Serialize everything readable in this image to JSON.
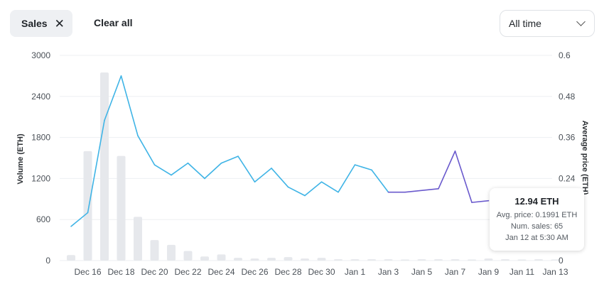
{
  "toolbar": {
    "filter_chip_label": "Sales",
    "clear_label": "Clear all",
    "range_select_value": "All time"
  },
  "tooltip": {
    "value": "12.94 ETH",
    "avg_price": "Avg. price: 0.1991 ETH",
    "num_sales": "Num. sales: 65",
    "date": "Jan 12 at 5:30 AM"
  },
  "colors": {
    "price_line_light": "#3fb4e6",
    "price_line_dark": "#6a5acd",
    "volume_bar": "#e6e8ec",
    "grid": "#edeff2"
  },
  "chart_data": {
    "type": "bar+line",
    "xlabel": "",
    "y_left_label": "Volume (ETH)",
    "y_right_label": "Average price (ETH)",
    "y_left_ticks": [
      "3000",
      "2400",
      "1800",
      "1200",
      "600",
      "0"
    ],
    "y_right_ticks": [
      "0.6",
      "0.48",
      "0.36",
      "0.24",
      "0.12",
      "0"
    ],
    "y_left_lim": [
      0,
      3000
    ],
    "y_right_lim": [
      0,
      0.6
    ],
    "x_tick_labels": [
      "Dec 16",
      "Dec 18",
      "Dec 20",
      "Dec 22",
      "Dec 24",
      "Dec 26",
      "Dec 28",
      "Dec 30",
      "Jan 1",
      "Jan 3",
      "Jan 5",
      "Jan 7",
      "Jan 9",
      "Jan 11",
      "Jan 13"
    ],
    "grid": true,
    "volume_bars": [
      {
        "date": "Dec 15",
        "value": 80
      },
      {
        "date": "Dec 16",
        "value": 1600
      },
      {
        "date": "Dec 17",
        "value": 2750
      },
      {
        "date": "Dec 18",
        "value": 1530
      },
      {
        "date": "Dec 19",
        "value": 640
      },
      {
        "date": "Dec 20",
        "value": 300
      },
      {
        "date": "Dec 21",
        "value": 230
      },
      {
        "date": "Dec 22",
        "value": 140
      },
      {
        "date": "Dec 23",
        "value": 60
      },
      {
        "date": "Dec 24",
        "value": 90
      },
      {
        "date": "Dec 25",
        "value": 40
      },
      {
        "date": "Dec 26",
        "value": 30
      },
      {
        "date": "Dec 27",
        "value": 40
      },
      {
        "date": "Dec 28",
        "value": 50
      },
      {
        "date": "Dec 29",
        "value": 30
      },
      {
        "date": "Dec 30",
        "value": 40
      },
      {
        "date": "Dec 31",
        "value": 20
      },
      {
        "date": "Jan 1",
        "value": 20
      },
      {
        "date": "Jan 2",
        "value": 20
      },
      {
        "date": "Jan 3",
        "value": 20
      },
      {
        "date": "Jan 4",
        "value": 15
      },
      {
        "date": "Jan 5",
        "value": 20
      },
      {
        "date": "Jan 6",
        "value": 20
      },
      {
        "date": "Jan 7",
        "value": 20
      },
      {
        "date": "Jan 8",
        "value": 15
      },
      {
        "date": "Jan 9",
        "value": 30
      },
      {
        "date": "Jan 10",
        "value": 20
      },
      {
        "date": "Jan 11",
        "value": 15
      },
      {
        "date": "Jan 12",
        "value": 20
      },
      {
        "date": "Jan 13",
        "value": 15
      }
    ],
    "price_points": [
      {
        "date": "Dec 15",
        "value": 0.1
      },
      {
        "date": "Dec 16",
        "value": 0.14
      },
      {
        "date": "Dec 17",
        "value": 0.41
      },
      {
        "date": "Dec 18",
        "value": 0.54
      },
      {
        "date": "Dec 19",
        "value": 0.365
      },
      {
        "date": "Dec 20",
        "value": 0.28
      },
      {
        "date": "Dec 21",
        "value": 0.25
      },
      {
        "date": "Dec 22",
        "value": 0.285
      },
      {
        "date": "Dec 23",
        "value": 0.24
      },
      {
        "date": "Dec 24",
        "value": 0.285
      },
      {
        "date": "Dec 25",
        "value": 0.305
      },
      {
        "date": "Dec 26",
        "value": 0.23
      },
      {
        "date": "Dec 27",
        "value": 0.27
      },
      {
        "date": "Dec 28",
        "value": 0.215
      },
      {
        "date": "Dec 29",
        "value": 0.19
      },
      {
        "date": "Dec 30",
        "value": 0.23
      },
      {
        "date": "Dec 31",
        "value": 0.2
      },
      {
        "date": "Jan 1",
        "value": 0.28
      },
      {
        "date": "Jan 2",
        "value": 0.265
      },
      {
        "date": "Jan 3",
        "value": 0.2
      },
      {
        "date": "Jan 4",
        "value": 0.2
      },
      {
        "date": "Jan 6",
        "value": 0.21
      },
      {
        "date": "Jan 7",
        "value": 0.32
      },
      {
        "date": "Jan 8",
        "value": 0.17
      },
      {
        "date": "Jan 9",
        "value": 0.175
      }
    ]
  }
}
